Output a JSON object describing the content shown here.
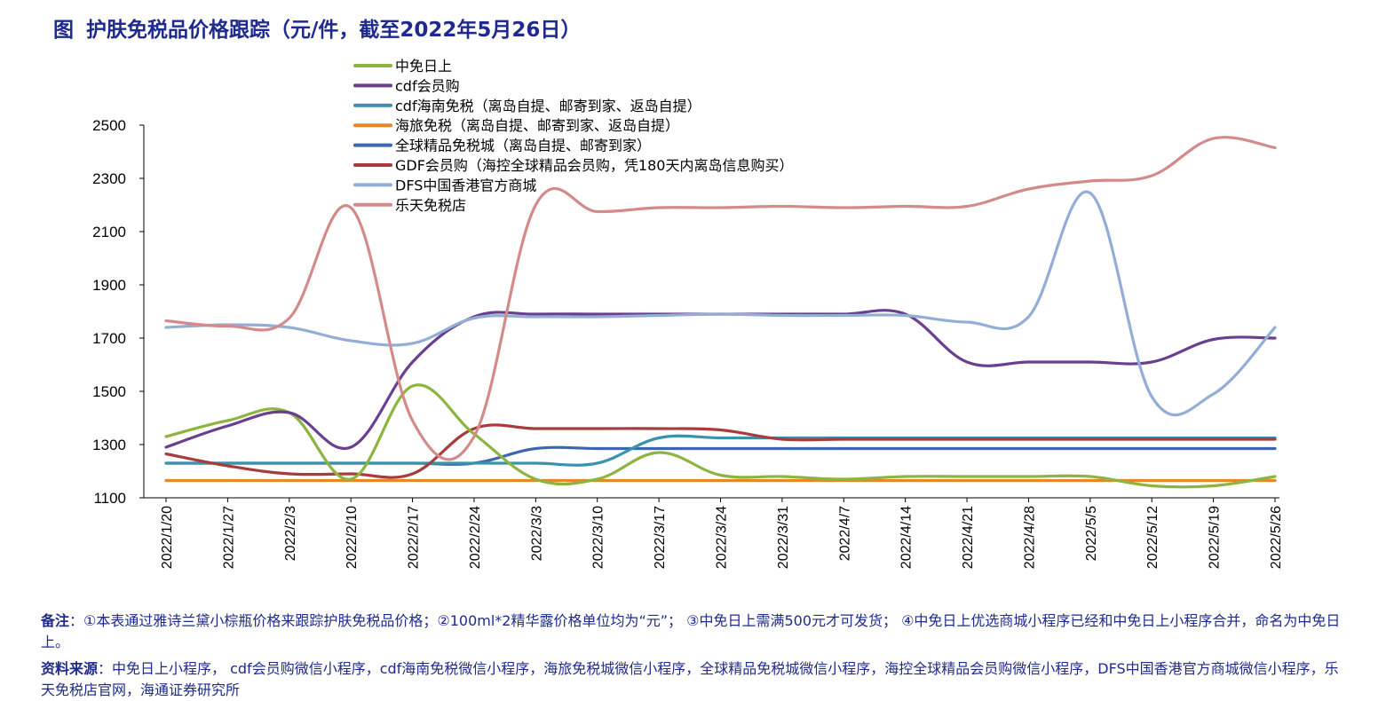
{
  "title": {
    "prefix": "图",
    "text": "护肤免税品价格跟踪（元/件，截至2022年5月26日）"
  },
  "notes": [
    {
      "label": "备注",
      "text": "：①本表通过雅诗兰黛小棕瓶价格来跟踪护肤免税品价格；②100ml*2精华露价格单位均为“元”；  ③中免日上需满500元才可发货；  ④中免日上优选商城小程序已经和中免日上小程序合并，命名为中免日上。"
    },
    {
      "label": "资料来源",
      "text": "：中免日上小程序， cdf会员购微信小程序，cdf海南免税微信小程序，海旅免税城微信小程序，全球精品免税城微信小程序，海控全球精品会员购微信小程序，DFS中国香港官方商城微信小程序，乐天免税店官网，海通证券研究所"
    }
  ],
  "chart_data": {
    "type": "line",
    "title": "护肤免税品价格跟踪（元/件，截至2022年5月26日）",
    "xlabel": "",
    "ylabel": "",
    "ylim": [
      1100,
      2500
    ],
    "yticks": [
      1100,
      1300,
      1500,
      1700,
      1900,
      2100,
      2300,
      2500
    ],
    "x": [
      "2022/1/20",
      "2022/1/27",
      "2022/2/3",
      "2022/2/10",
      "2022/2/17",
      "2022/2/24",
      "2022/3/3",
      "2022/3/10",
      "2022/3/17",
      "2022/3/24",
      "2022/3/31",
      "2022/4/7",
      "2022/4/14",
      "2022/4/21",
      "2022/4/28",
      "2022/5/5",
      "2022/5/12",
      "2022/5/19",
      "2022/5/26"
    ],
    "legend_position": "top-left",
    "grid": false,
    "series": [
      {
        "name": "中免日上",
        "color": "#8cb43f",
        "values": [
          1330,
          1390,
          1420,
          1170,
          1520,
          1340,
          1170,
          1170,
          1270,
          1185,
          1180,
          1170,
          1180,
          1180,
          1180,
          1180,
          1145,
          1145,
          1180
        ]
      },
      {
        "name": "cdf会员购",
        "color": "#6a3f8f",
        "values": [
          1290,
          1370,
          1420,
          1290,
          1610,
          1780,
          1790,
          1790,
          1790,
          1790,
          1790,
          1790,
          1790,
          1610,
          1610,
          1610,
          1610,
          1695,
          1700
        ]
      },
      {
        "name": "cdf海南免税（离岛自提、邮寄到家、返岛自提）",
        "color": "#3a93ad",
        "values": [
          1230,
          1230,
          1230,
          1230,
          1230,
          1230,
          1230,
          1230,
          1325,
          1325,
          1325,
          1325,
          1325,
          1325,
          1325,
          1325,
          1325,
          1325,
          1325
        ]
      },
      {
        "name": "海旅免税（离岛自提、邮寄到家、返岛自提）",
        "color": "#e8862a",
        "values": [
          1165,
          1165,
          1165,
          1165,
          1165,
          1165,
          1165,
          1165,
          1165,
          1165,
          1165,
          1165,
          1165,
          1165,
          1165,
          1165,
          1165,
          1165,
          1165
        ]
      },
      {
        "name": "全球精品免税城（离岛自提、邮寄到家）",
        "color": "#3c66ad",
        "values": [
          1230,
          1230,
          1230,
          1230,
          1230,
          1230,
          1285,
          1285,
          1285,
          1285,
          1285,
          1285,
          1285,
          1285,
          1285,
          1285,
          1285,
          1285,
          1285
        ]
      },
      {
        "name": "GDF会员购（海控全球精品会员购，凭180天内离岛信息购买）",
        "color": "#a83c3c",
        "values": [
          1265,
          1220,
          1190,
          1190,
          1190,
          1360,
          1360,
          1360,
          1360,
          1355,
          1320,
          1320,
          1320,
          1320,
          1320,
          1320,
          1320,
          1320,
          1320
        ]
      },
      {
        "name": "DFS中国香港官方商城",
        "color": "#93aed6",
        "values": [
          1740,
          1750,
          1740,
          1690,
          1680,
          1775,
          1780,
          1780,
          1785,
          1790,
          1785,
          1785,
          1785,
          1760,
          1780,
          2245,
          1480,
          1490,
          1740
        ]
      },
      {
        "name": "乐天免税店",
        "color": "#d48a8a",
        "values": [
          1765,
          1745,
          1775,
          2190,
          1390,
          1330,
          2200,
          2175,
          2190,
          2190,
          2195,
          2190,
          2195,
          2195,
          2260,
          2290,
          2310,
          2450,
          2415
        ]
      }
    ]
  }
}
